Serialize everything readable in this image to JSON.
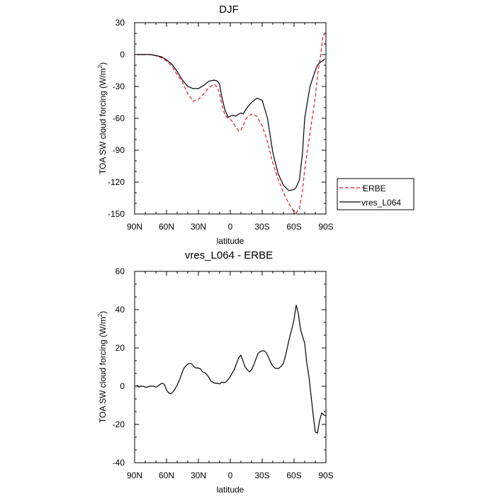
{
  "chart_data": [
    {
      "type": "line",
      "title": "DJF",
      "xlabel": "latitude",
      "ylabel_main": "TOA SW cloud forcing (W/m",
      "ylabel_sup": "2",
      "ylabel_end": ")",
      "xlim": [
        90,
        -90
      ],
      "ylim": [
        -150,
        30
      ],
      "xticks": [
        {
          "value": 90,
          "label": "90N"
        },
        {
          "value": 60,
          "label": "60N"
        },
        {
          "value": 30,
          "label": "30N"
        },
        {
          "value": 0,
          "label": "0"
        },
        {
          "value": -30,
          "label": "30S"
        },
        {
          "value": -60,
          "label": "60S"
        },
        {
          "value": -90,
          "label": "90S"
        }
      ],
      "yticks": [
        30,
        0,
        -30,
        -60,
        -90,
        -120,
        -150
      ],
      "legend": "right",
      "series": [
        {
          "name": "ERBE",
          "color": "#e41a1c",
          "dashed": true,
          "x": [
            88,
            85,
            80,
            75,
            70,
            65,
            60,
            55,
            50,
            45,
            40,
            35,
            30,
            25,
            20,
            15,
            12,
            10,
            8,
            5,
            2,
            0,
            -2,
            -5,
            -8,
            -10,
            -12,
            -15,
            -20,
            -25,
            -30,
            -35,
            -40,
            -45,
            -50,
            -55,
            -60,
            -62,
            -65,
            -68,
            -70,
            -75,
            -80,
            -82,
            -85,
            -87,
            -88,
            -89
          ],
          "y": [
            0,
            0,
            0,
            0,
            -1,
            -3,
            -6,
            -11,
            -19,
            -26,
            -37,
            -44,
            -42,
            -37,
            -31,
            -28,
            -31,
            -37,
            -47,
            -57,
            -60,
            -61,
            -63,
            -68,
            -72,
            -71,
            -67,
            -60,
            -56,
            -58,
            -67,
            -82,
            -102,
            -117,
            -130,
            -140,
            -148,
            -149,
            -145,
            -128,
            -108,
            -74,
            -40,
            -20,
            -1,
            16,
            19,
            18
          ]
        },
        {
          "name": "vres_L064",
          "color": "#000000",
          "dashed": false,
          "x": [
            88,
            85,
            80,
            75,
            70,
            65,
            60,
            55,
            50,
            45,
            40,
            35,
            30,
            25,
            20,
            15,
            12,
            10,
            8,
            5,
            2,
            0,
            -2,
            -5,
            -8,
            -10,
            -12,
            -15,
            -20,
            -25,
            -30,
            -35,
            -40,
            -45,
            -50,
            -55,
            -60,
            -62,
            -65,
            -68,
            -70,
            -75,
            -80,
            -82,
            -85,
            -88,
            -89
          ],
          "y": [
            0,
            0,
            0,
            0,
            -1,
            -2,
            -5,
            -9,
            -16,
            -24,
            -30,
            -32,
            -32,
            -29,
            -25,
            -24,
            -25,
            -28,
            -40,
            -52,
            -59,
            -58,
            -57,
            -58,
            -56,
            -55,
            -56,
            -51,
            -45,
            -41,
            -43,
            -60,
            -92,
            -112,
            -123,
            -128,
            -127,
            -125,
            -118,
            -92,
            -60,
            -30,
            -15,
            -10,
            -7,
            -5,
            -4
          ]
        }
      ]
    },
    {
      "type": "line",
      "title": "vres_L064 - ERBE",
      "xlabel": "latitude",
      "ylabel_main": "TOA SW cloud forcing (W/m",
      "ylabel_sup": "2",
      "ylabel_end": ")",
      "xlim": [
        90,
        -90
      ],
      "ylim": [
        -40,
        60
      ],
      "xticks": [
        {
          "value": 90,
          "label": "90N"
        },
        {
          "value": 60,
          "label": "60N"
        },
        {
          "value": 30,
          "label": "30N"
        },
        {
          "value": 0,
          "label": "0"
        },
        {
          "value": -30,
          "label": "30S"
        },
        {
          "value": -60,
          "label": "60S"
        },
        {
          "value": -90,
          "label": "90S"
        }
      ],
      "yticks": [
        60,
        40,
        20,
        0,
        -20,
        -40
      ],
      "series": [
        {
          "name": "",
          "color": "#000000",
          "dashed": false,
          "x": [
            88,
            86,
            84,
            82,
            80,
            78,
            76,
            74,
            72,
            70,
            68,
            66,
            64,
            62,
            60,
            58,
            56,
            54,
            52,
            50,
            48,
            46,
            44,
            42,
            40,
            38,
            36,
            34,
            32,
            30,
            28,
            26,
            24,
            22,
            20,
            18,
            16,
            14,
            12,
            10,
            8,
            6,
            4,
            2,
            0,
            -2,
            -4,
            -6,
            -8,
            -10,
            -12,
            -14,
            -16,
            -18,
            -20,
            -22,
            -24,
            -26,
            -28,
            -30,
            -32,
            -34,
            -36,
            -38,
            -40,
            -42,
            -44,
            -46,
            -48,
            -50,
            -52,
            -54,
            -56,
            -58,
            -60,
            -62,
            -64,
            -66,
            -68,
            -70,
            -72,
            -74,
            -76,
            -78,
            -80,
            -82,
            -84,
            -86,
            -88,
            -90
          ],
          "y": [
            0.5,
            -0.5,
            0,
            0,
            -0.5,
            -0.5,
            0,
            0,
            0,
            -0.5,
            0,
            1,
            1.5,
            1,
            -2,
            -3.5,
            -4,
            -3,
            -1.5,
            0.5,
            3,
            6,
            9,
            10.5,
            11.5,
            12,
            11.5,
            10,
            9.5,
            9.5,
            9,
            7.5,
            7,
            6,
            4.5,
            2.5,
            2,
            1.5,
            1.5,
            1.2,
            2.2,
            1.8,
            2.2,
            3.5,
            5,
            7,
            9,
            12,
            15,
            16.2,
            13,
            10,
            8.5,
            7.5,
            8.5,
            11,
            14,
            17,
            18,
            18.5,
            18.5,
            17.5,
            15,
            12.5,
            10.5,
            9.5,
            9.2,
            9.5,
            10.5,
            12,
            16,
            21,
            26,
            30,
            35,
            42.5,
            38,
            30,
            26,
            22.5,
            12,
            5,
            -5,
            -15,
            -24,
            -24.5,
            -18,
            -14,
            -15,
            -15.5
          ]
        }
      ]
    }
  ]
}
